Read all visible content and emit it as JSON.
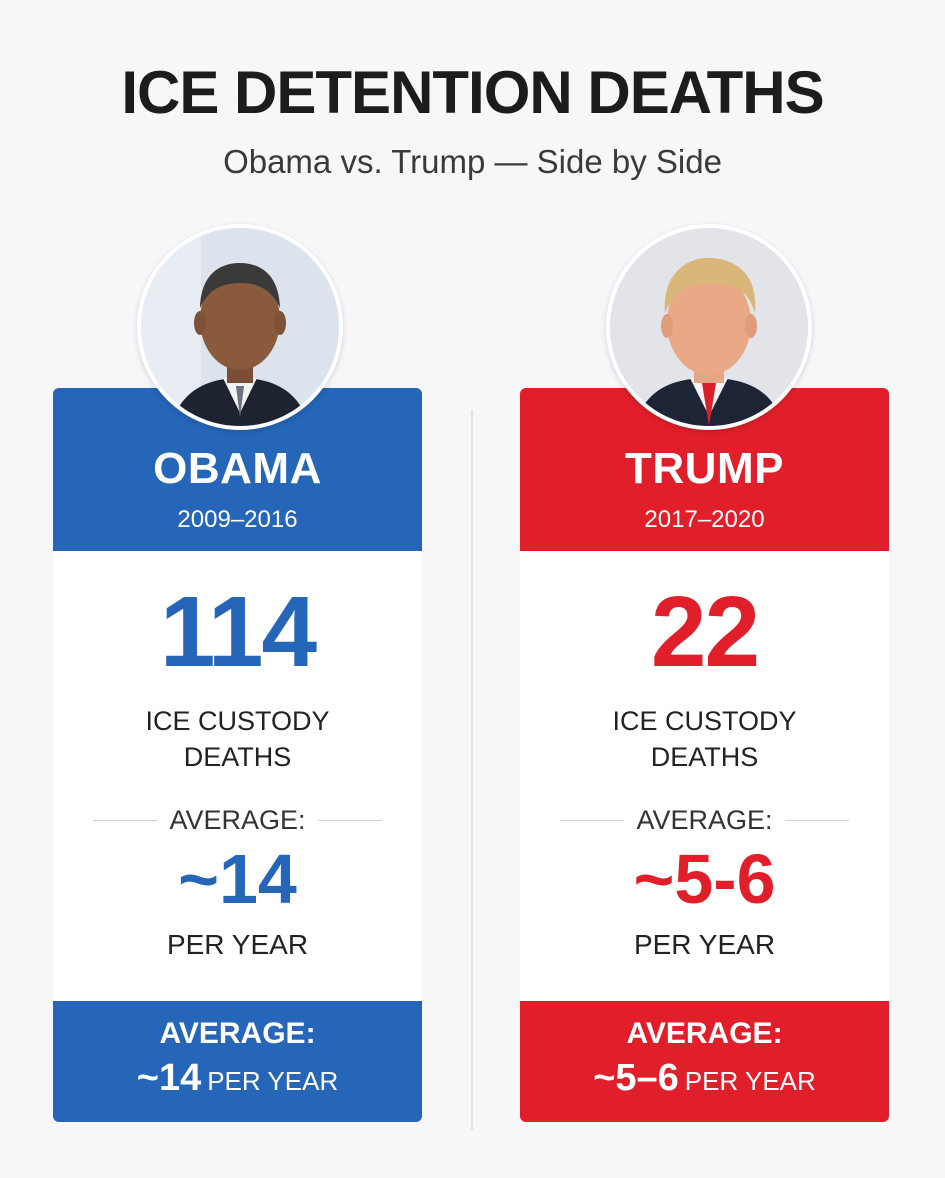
{
  "header": {
    "title": "ICE DETENTION DEATHS",
    "subtitle": "Obama vs. Trump — Side by Side"
  },
  "obama": {
    "name": "OBAMA",
    "years": "2009–2016",
    "deaths": "114",
    "label_line1": "ICE CUSTODY",
    "label_line2": "DEATHS",
    "average_label": "AVERAGE:",
    "average_value": "~14",
    "per_year": "PER YEAR",
    "footer_label": "AVERAGE:",
    "footer_value": "~14",
    "footer_unit": "PER YEAR",
    "color": "#2566b9"
  },
  "trump": {
    "name": "TRUMP",
    "years": "2017–2020",
    "deaths": "22",
    "label_line1": "ICE CUSTODY",
    "label_line2": "DEATHS",
    "average_label": "AVERAGE:",
    "average_value": "~5-6",
    "per_year": "PER YEAR",
    "footer_label": "AVERAGE:",
    "footer_value": "~5–6",
    "footer_unit": "PER YEAR",
    "color": "#e11f2a"
  }
}
